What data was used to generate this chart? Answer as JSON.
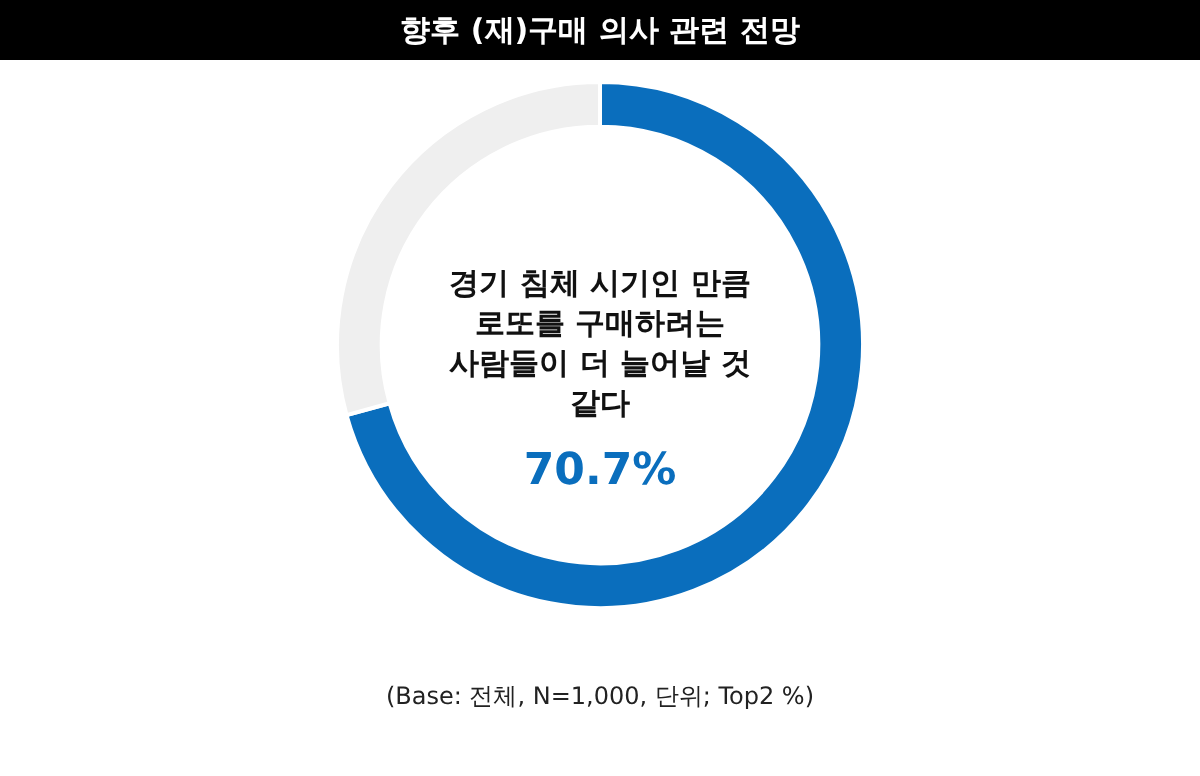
{
  "chart_data": {
    "type": "donut",
    "title": "향후 (재)구매 의사 관련 전망",
    "categories": [
      "경기 침체 시기인 만큼 로또를 구매하려는 사람들이 더 늘어날 것 같다",
      null
    ],
    "values": [
      70.7,
      29.3
    ],
    "colors": [
      "#0a6ebd",
      "#efefef"
    ],
    "value_labels": [
      "70.7%",
      null
    ],
    "legend": false,
    "annotations": [
      "(Base: 전체, N=1,000, 단위; Top2 %)"
    ]
  }
}
